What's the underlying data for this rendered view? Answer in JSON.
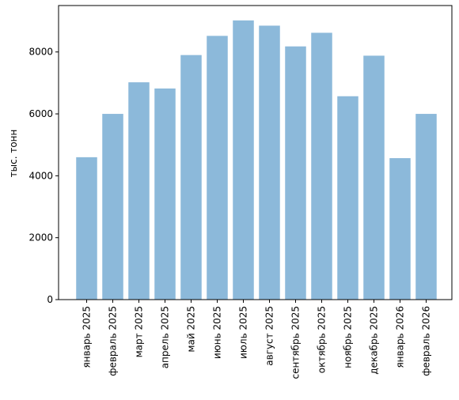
{
  "chart_data": {
    "type": "bar",
    "title": "",
    "xlabel": "",
    "ylabel": "тыс. тонн",
    "categories": [
      "январь 2025",
      "февраль 2025",
      "март 2025",
      "апрель 2025",
      "май 2025",
      "июнь 2025",
      "июль 2025",
      "август 2025",
      "сентябрь 2025",
      "октябрь 2025",
      "ноябрь 2025",
      "декабрь 2025",
      "январь 2026",
      "февраль 2026"
    ],
    "values": [
      4600,
      6000,
      7020,
      6820,
      7900,
      8520,
      9020,
      8850,
      8180,
      8620,
      6570,
      7880,
      4570,
      6000
    ],
    "ylim": [
      0,
      9500
    ],
    "yticks": [
      0,
      2000,
      4000,
      6000,
      8000
    ],
    "ytick_labels": [
      "0",
      "2000",
      "4000",
      "6000",
      "8000"
    ],
    "bar_color": "#8cb9da",
    "grid": false,
    "legend": "none"
  }
}
